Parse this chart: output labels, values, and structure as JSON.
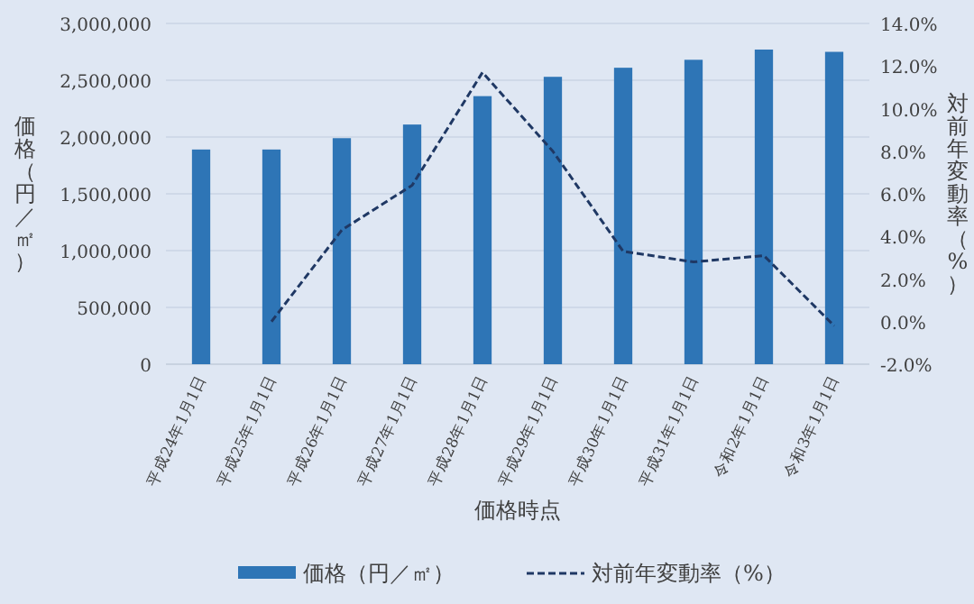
{
  "chart_data": {
    "type": "bar",
    "xlabel": "価格時点",
    "ylabel": "価格（円／㎡）",
    "y2label": "対前年変動率（%）",
    "categories": [
      "平成24年1月1日",
      "平成25年1月1日",
      "平成26年1月1日",
      "平成27年1月1日",
      "平成28年1月1日",
      "平成29年1月1日",
      "平成30年1月1日",
      "平成31年1月1日",
      "令和2年1月1日",
      "令和3年1月1日"
    ],
    "series": [
      {
        "name": "価格（円／㎡）",
        "color": "#2e75b6",
        "values": [
          1890000,
          1890000,
          1990000,
          2110000,
          2360000,
          2530000,
          2610000,
          2680000,
          2770000,
          2750000
        ]
      },
      {
        "name": "対前年変動率（%）",
        "type": "line",
        "axis": "y2",
        "color": "#1f3864",
        "line_style": "dashed",
        "marker": "none",
        "values": [
          null,
          0.0,
          4.3,
          6.4,
          11.7,
          8.0,
          3.3,
          2.8,
          3.1,
          -0.2
        ]
      }
    ],
    "ylim": [
      0,
      3000000
    ],
    "yticks": [
      {
        "value": 0,
        "label": "0"
      },
      {
        "value": 500000,
        "label": "500,000"
      },
      {
        "value": 1000000,
        "label": "1,000,000"
      },
      {
        "value": 1500000,
        "label": "1,500,000"
      },
      {
        "value": 2000000,
        "label": "2,000,000"
      },
      {
        "value": 2500000,
        "label": "2,500,000"
      },
      {
        "value": 3000000,
        "label": "3,000,000"
      }
    ],
    "y2lim": [
      -2,
      14
    ],
    "y2ticks": [
      {
        "value": -2,
        "label": "-2.0%"
      },
      {
        "value": 0,
        "label": "0.0%"
      },
      {
        "value": 2,
        "label": "2.0%"
      },
      {
        "value": 4,
        "label": "4.0%"
      },
      {
        "value": 6,
        "label": "6.0%"
      },
      {
        "value": 8,
        "label": "8.0%"
      },
      {
        "value": 10,
        "label": "10.0%"
      },
      {
        "value": 12,
        "label": "12.0%"
      },
      {
        "value": 14,
        "label": "14.0%"
      }
    ],
    "grid": "y",
    "legend": "bottom"
  }
}
